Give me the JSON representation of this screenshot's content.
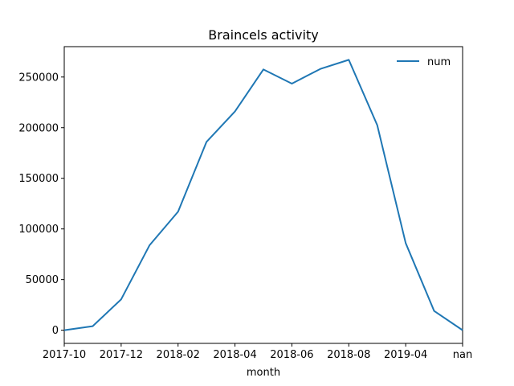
{
  "chart_data": {
    "type": "line",
    "title": "Braincels activity",
    "xlabel": "month",
    "ylabel": "",
    "x_tick_labels": [
      "2017-10",
      "2017-12",
      "2018-02",
      "2018-04",
      "2018-06",
      "2018-08",
      "2019-04",
      "nan"
    ],
    "y_tick_labels": [
      "0",
      "50000",
      "100000",
      "150000",
      "200000",
      "250000"
    ],
    "y_ticks": [
      0,
      50000,
      100000,
      150000,
      200000,
      250000
    ],
    "ylim": [
      -13000,
      280000
    ],
    "legend_position": "top-right",
    "grid": false,
    "series": [
      {
        "name": "num",
        "color": "#1f77b4",
        "values": [
          0,
          4000,
          30500,
          84000,
          117000,
          186000,
          216000,
          257500,
          243500,
          258000,
          267000,
          202500,
          86000,
          19000,
          0
        ]
      }
    ]
  }
}
